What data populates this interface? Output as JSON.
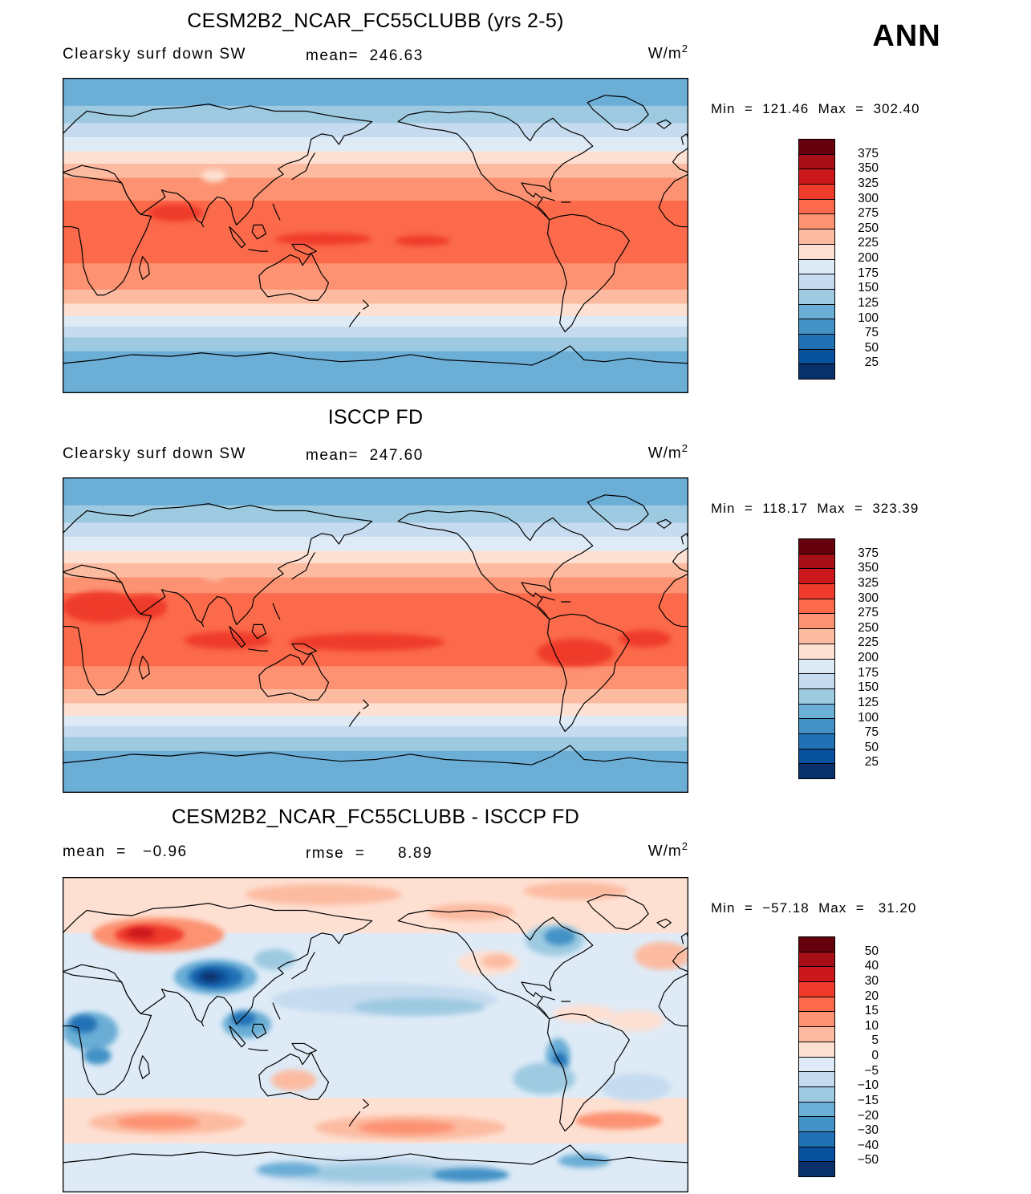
{
  "header": {
    "season": "ANN"
  },
  "panels": [
    {
      "title": "CESM2B2_NCAR_FC55CLUBB (yrs 2-5)",
      "sub_left": "Clearsky surf down SW",
      "sub_center": "mean=  246.63",
      "units_base": "W/m",
      "units_exp": "2",
      "minmax": "Min  =  121.46  Max  =  302.40"
    },
    {
      "title": "ISCCP FD",
      "sub_left": "Clearsky surf down SW",
      "sub_center": "mean=  247.60",
      "units_base": "W/m",
      "units_exp": "2",
      "minmax": "Min  =  118.17  Max  =  323.39"
    },
    {
      "title": "CESM2B2_NCAR_FC55CLUBB - ISCCP FD",
      "sub_left": "mean  =   −0.96",
      "sub_center": "rmse  =      8.89",
      "units_base": "W/m",
      "units_exp": "2",
      "minmax": "Min  =  −57.18  Max  =   31.20"
    }
  ],
  "chart_data": [
    {
      "type": "heatmap",
      "subtype": "global filled-contour map",
      "projection": "equirectangular, lon 0-360E, lat 90N-90S",
      "title": "CESM2B2_NCAR_FC55CLUBB (yrs 2-5)",
      "variable": "Clearsky surf down SW",
      "season": "ANN",
      "units": "W/m2",
      "stats": {
        "mean": 246.63,
        "min": 121.46,
        "max": 302.4
      },
      "contour_levels": [
        25,
        50,
        75,
        100,
        125,
        150,
        175,
        200,
        225,
        250,
        275,
        300,
        325,
        350,
        375
      ],
      "colorbar": {
        "labels_top_to_bottom": [
          "375",
          "350",
          "325",
          "300",
          "275",
          "250",
          "225",
          "200",
          "175",
          "150",
          "125",
          "100",
          "75",
          "50",
          "25"
        ],
        "colors_top_to_bottom": [
          "#67000d",
          "#a50f15",
          "#cb181d",
          "#ef3b2c",
          "#fb6a4a",
          "#fc9272",
          "#fcbba1",
          "#fee0d2",
          "#deebf7",
          "#c6dbef",
          "#9ecae1",
          "#6baed6",
          "#4292c6",
          "#2171b5",
          "#08519c",
          "#08306b"
        ]
      },
      "field": {
        "zonal_bands": [
          {
            "from_lat": 90,
            "to_lat": 74,
            "value": "100..125",
            "color": "#6baed6"
          },
          {
            "from_lat": 74,
            "to_lat": 64,
            "value": "125..150",
            "color": "#9ecae1"
          },
          {
            "from_lat": 64,
            "to_lat": 56,
            "value": "150..175",
            "color": "#c6dbef"
          },
          {
            "from_lat": 56,
            "to_lat": 48,
            "value": "175..200",
            "color": "#deebf7"
          },
          {
            "from_lat": 48,
            "to_lat": 41,
            "value": "200..225",
            "color": "#fee0d2"
          },
          {
            "from_lat": 41,
            "to_lat": 33,
            "value": "225..250",
            "color": "#fcbba1"
          },
          {
            "from_lat": 33,
            "to_lat": 20,
            "value": "250..275",
            "color": "#fc9272"
          },
          {
            "from_lat": 20,
            "to_lat": -16,
            "value": "275..300",
            "color": "#fb6a4a"
          },
          {
            "from_lat": -16,
            "to_lat": -31,
            "value": "250..275",
            "color": "#fc9272"
          },
          {
            "from_lat": -31,
            "to_lat": -39,
            "value": "225..250",
            "color": "#fcbba1"
          },
          {
            "from_lat": -39,
            "to_lat": -46,
            "value": "200..225",
            "color": "#fee0d2"
          },
          {
            "from_lat": -46,
            "to_lat": -52,
            "value": "175..200",
            "color": "#deebf7"
          },
          {
            "from_lat": -52,
            "to_lat": -58,
            "value": "150..175",
            "color": "#c6dbef"
          },
          {
            "from_lat": -58,
            "to_lat": -66,
            "value": "125..150",
            "color": "#9ecae1"
          },
          {
            "from_lat": -66,
            "to_lat": -90,
            "value": "100..150",
            "color": "#6baed6"
          }
        ],
        "patches": [
          {
            "lon": 65,
            "lat": 13,
            "rlon": 16,
            "rlat": 5,
            "color": "#ef3b2c"
          },
          {
            "lon": 150,
            "lat": -2,
            "rlon": 28,
            "rlat": 3.5,
            "color": "#ef3b2c"
          },
          {
            "lon": 207,
            "lat": -3,
            "rlon": 16,
            "rlat": 3,
            "color": "#ef3b2c"
          },
          {
            "lon": 87,
            "lat": 34,
            "rlon": 7,
            "rlat": 3.5,
            "color": "#fee0d2"
          }
        ]
      }
    },
    {
      "type": "heatmap",
      "subtype": "global filled-contour map",
      "projection": "equirectangular, lon 0-360E, lat 90N-90S",
      "title": "ISCCP FD",
      "variable": "Clearsky surf down SW",
      "season": "ANN",
      "units": "W/m2",
      "stats": {
        "mean": 247.6,
        "min": 118.17,
        "max": 323.39
      },
      "contour_levels": [
        25,
        50,
        75,
        100,
        125,
        150,
        175,
        200,
        225,
        250,
        275,
        300,
        325,
        350,
        375
      ],
      "colorbar": {
        "labels_top_to_bottom": [
          "375",
          "350",
          "325",
          "300",
          "275",
          "250",
          "225",
          "200",
          "175",
          "150",
          "125",
          "100",
          "75",
          "50",
          "25"
        ],
        "colors_top_to_bottom": [
          "#67000d",
          "#a50f15",
          "#cb181d",
          "#ef3b2c",
          "#fb6a4a",
          "#fc9272",
          "#fcbba1",
          "#fee0d2",
          "#deebf7",
          "#c6dbef",
          "#9ecae1",
          "#6baed6",
          "#4292c6",
          "#2171b5",
          "#08519c",
          "#08306b"
        ]
      },
      "field": {
        "zonal_bands": [
          {
            "from_lat": 90,
            "to_lat": 74,
            "value": "100..125",
            "color": "#6baed6"
          },
          {
            "from_lat": 74,
            "to_lat": 64,
            "value": "125..150",
            "color": "#9ecae1"
          },
          {
            "from_lat": 64,
            "to_lat": 56,
            "value": "150..175",
            "color": "#c6dbef"
          },
          {
            "from_lat": 56,
            "to_lat": 48,
            "value": "175..200",
            "color": "#deebf7"
          },
          {
            "from_lat": 48,
            "to_lat": 41,
            "value": "200..225",
            "color": "#fee0d2"
          },
          {
            "from_lat": 41,
            "to_lat": 33,
            "value": "225..250",
            "color": "#fcbba1"
          },
          {
            "from_lat": 33,
            "to_lat": 24,
            "value": "250..275",
            "color": "#fc9272"
          },
          {
            "from_lat": 24,
            "to_lat": -18,
            "value": "275..300",
            "color": "#fb6a4a"
          },
          {
            "from_lat": -18,
            "to_lat": -31,
            "value": "250..275",
            "color": "#fc9272"
          },
          {
            "from_lat": -31,
            "to_lat": -39,
            "value": "225..250",
            "color": "#fcbba1"
          },
          {
            "from_lat": -39,
            "to_lat": -46,
            "value": "200..225",
            "color": "#fee0d2"
          },
          {
            "from_lat": -46,
            "to_lat": -52,
            "value": "175..200",
            "color": "#deebf7"
          },
          {
            "from_lat": -52,
            "to_lat": -58,
            "value": "150..175",
            "color": "#c6dbef"
          },
          {
            "from_lat": -58,
            "to_lat": -66,
            "value": "125..150",
            "color": "#9ecae1"
          },
          {
            "from_lat": -66,
            "to_lat": -90,
            "value": "100..150",
            "color": "#6baed6"
          }
        ],
        "patches": [
          {
            "lon": 22,
            "lat": 16,
            "rlon": 22,
            "rlat": 9,
            "color": "#ef3b2c"
          },
          {
            "lon": 48,
            "lat": 16,
            "rlon": 12,
            "rlat": 7,
            "color": "#ef3b2c"
          },
          {
            "lon": 95,
            "lat": -3,
            "rlon": 25,
            "rlat": 5,
            "color": "#ef3b2c"
          },
          {
            "lon": 175,
            "lat": -4,
            "rlon": 45,
            "rlat": 5,
            "color": "#ef3b2c"
          },
          {
            "lon": 295,
            "lat": -10,
            "rlon": 22,
            "rlat": 8,
            "color": "#ef3b2c"
          },
          {
            "lon": 335,
            "lat": -2,
            "rlon": 15,
            "rlat": 5,
            "color": "#ef3b2c"
          },
          {
            "lon": 87,
            "lat": 34,
            "rlon": 6,
            "rlat": 3,
            "color": "#fcbba1"
          }
        ]
      }
    },
    {
      "type": "heatmap",
      "subtype": "global difference map (model minus obs)",
      "projection": "equirectangular, lon 0-360E, lat 90N-90S",
      "title": "CESM2B2_NCAR_FC55CLUBB - ISCCP FD",
      "variable": "Clearsky surf down SW difference",
      "season": "ANN",
      "units": "W/m2",
      "stats": {
        "mean": -0.96,
        "rmse": 8.89,
        "min": -57.18,
        "max": 31.2
      },
      "contour_levels": [
        -50,
        -40,
        -30,
        -20,
        -15,
        -10,
        -5,
        0,
        5,
        10,
        15,
        20,
        30,
        40,
        50
      ],
      "colorbar": {
        "labels_top_to_bottom": [
          "50",
          "40",
          "30",
          "20",
          "15",
          "10",
          "5",
          "0",
          "−5",
          "−10",
          "−15",
          "−20",
          "−30",
          "−40",
          "−50"
        ],
        "colors_top_to_bottom": [
          "#67000d",
          "#a50f15",
          "#cb181d",
          "#ef3b2c",
          "#fb6a4a",
          "#fc9272",
          "#fcbba1",
          "#fee0d2",
          "#deebf7",
          "#c6dbef",
          "#9ecae1",
          "#6baed6",
          "#4292c6",
          "#2171b5",
          "#08519c",
          "#08306b"
        ]
      },
      "field": {
        "zonal_bands": [
          {
            "from_lat": 90,
            "to_lat": 58,
            "value": "0..5",
            "color": "#fee0d2"
          },
          {
            "from_lat": 58,
            "to_lat": -36,
            "value": "-5..0",
            "color": "#deebf7"
          },
          {
            "from_lat": -36,
            "to_lat": -62,
            "value": "0..5",
            "color": "#fee0d2"
          },
          {
            "from_lat": -62,
            "to_lat": -90,
            "value": "-5..0",
            "color": "#deebf7"
          }
        ],
        "patches": [
          {
            "lon": 150,
            "lat": 80,
            "rlon": 45,
            "rlat": 6,
            "color": "#fcbba1"
          },
          {
            "lon": 295,
            "lat": 82,
            "rlon": 30,
            "rlat": 5,
            "color": "#fcbba1"
          },
          {
            "lon": 235,
            "lat": 70,
            "rlon": 25,
            "rlat": 5,
            "color": "#fcbba1"
          },
          {
            "lon": 345,
            "lat": 45,
            "rlon": 16,
            "rlat": 8,
            "color": "#fcbba1"
          },
          {
            "lon": 245,
            "lat": 41,
            "rlon": 18,
            "rlat": 7,
            "color": "#fee0d2"
          },
          {
            "lon": 250,
            "lat": 42,
            "rlon": 9,
            "rlat": 4,
            "color": "#fcbba1"
          },
          {
            "lon": 330,
            "lat": 8,
            "rlon": 16,
            "rlat": 6,
            "color": "#fee0d2"
          },
          {
            "lon": 300,
            "lat": 12,
            "rlon": 18,
            "rlat": 5,
            "color": "#fee0d2"
          },
          {
            "lon": 133,
            "lat": -26,
            "rlon": 13,
            "rlat": 6,
            "color": "#fcbba1"
          },
          {
            "lon": 60,
            "lat": -50,
            "rlon": 45,
            "rlat": 7,
            "color": "#fcbba1"
          },
          {
            "lon": 55,
            "lat": -50,
            "rlon": 24,
            "rlat": 4,
            "color": "#fc9272"
          },
          {
            "lon": 200,
            "lat": -53,
            "rlon": 55,
            "rlat": 7,
            "color": "#fcbba1"
          },
          {
            "lon": 198,
            "lat": -53,
            "rlon": 28,
            "rlat": 4,
            "color": "#fc9272"
          },
          {
            "lon": 320,
            "lat": -49,
            "rlon": 25,
            "rlat": 5,
            "color": "#fc9272"
          },
          {
            "lon": 55,
            "lat": 57,
            "rlon": 38,
            "rlat": 10,
            "color": "#fc9272"
          },
          {
            "lon": 50,
            "lat": 57,
            "rlon": 20,
            "rlat": 6,
            "color": "#ef3b2c"
          },
          {
            "lon": 45,
            "lat": 58,
            "rlon": 8,
            "rlat": 3,
            "color": "#cb181d"
          },
          {
            "lon": 185,
            "lat": 20,
            "rlon": 65,
            "rlat": 9,
            "color": "#c6dbef"
          },
          {
            "lon": 205,
            "lat": 16,
            "rlon": 38,
            "rlat": 5,
            "color": "#9ecae1"
          },
          {
            "lon": 283,
            "lat": 54,
            "rlon": 17,
            "rlat": 9,
            "color": "#9ecae1"
          },
          {
            "lon": 286,
            "lat": 56,
            "rlon": 9,
            "rlat": 5,
            "color": "#4292c6"
          },
          {
            "lon": 122,
            "lat": 43,
            "rlon": 12,
            "rlat": 6,
            "color": "#9ecae1"
          },
          {
            "lon": 88,
            "lat": 33,
            "rlon": 24,
            "rlat": 10,
            "color": "#6baed6"
          },
          {
            "lon": 88,
            "lat": 33,
            "rlon": 16,
            "rlat": 7,
            "color": "#2171b5"
          },
          {
            "lon": 86,
            "lat": 33,
            "rlon": 10,
            "rlat": 4.5,
            "color": "#08519c"
          },
          {
            "lon": 85,
            "lat": 33,
            "rlon": 5,
            "rlat": 2.5,
            "color": "#08306b"
          },
          {
            "lon": 106,
            "lat": 6,
            "rlon": 14,
            "rlat": 8,
            "color": "#6baed6"
          },
          {
            "lon": 104,
            "lat": 9,
            "rlon": 7,
            "rlat": 4,
            "color": "#2171b5"
          },
          {
            "lon": 16,
            "lat": 2,
            "rlon": 16,
            "rlat": 11,
            "color": "#6baed6"
          },
          {
            "lon": 12,
            "lat": 6,
            "rlon": 8,
            "rlat": 5,
            "color": "#2171b5"
          },
          {
            "lon": 20,
            "lat": -12,
            "rlon": 8,
            "rlat": 5,
            "color": "#4292c6"
          },
          {
            "lon": 285,
            "lat": -12,
            "rlon": 7,
            "rlat": 10,
            "color": "#6baed6"
          },
          {
            "lon": 286,
            "lat": -16,
            "rlon": 4,
            "rlat": 6,
            "color": "#2171b5"
          },
          {
            "lon": 277,
            "lat": -25,
            "rlon": 18,
            "rlat": 9,
            "color": "#9ecae1"
          },
          {
            "lon": 330,
            "lat": -30,
            "rlon": 20,
            "rlat": 8,
            "color": "#c6dbef"
          },
          {
            "lon": 180,
            "lat": -78,
            "rlon": 70,
            "rlat": 8,
            "color": "#c6dbef"
          },
          {
            "lon": 180,
            "lat": -79,
            "rlon": 45,
            "rlat": 5,
            "color": "#9ecae1"
          },
          {
            "lon": 235,
            "lat": -80,
            "rlon": 22,
            "rlat": 4,
            "color": "#4292c6"
          },
          {
            "lon": 130,
            "lat": -77,
            "rlon": 18,
            "rlat": 4,
            "color": "#6baed6"
          },
          {
            "lon": 300,
            "lat": -72,
            "rlon": 15,
            "rlat": 4,
            "color": "#6baed6"
          }
        ]
      }
    }
  ]
}
